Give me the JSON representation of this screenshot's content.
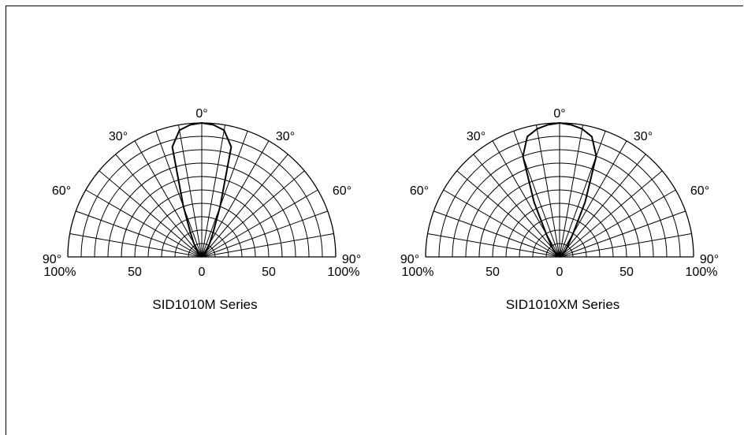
{
  "chart_data": [
    {
      "type": "polar",
      "title": "SID1010M Series",
      "angle_labels": [
        "0°",
        "30°",
        "30°",
        "60°",
        "60°",
        "90°",
        "90°"
      ],
      "radial_labels": [
        "100%",
        "50",
        "0",
        "50",
        "100%"
      ],
      "angle_range_deg": [
        -90,
        90
      ],
      "radius_range_pct": [
        0,
        100
      ],
      "grid": true,
      "series": [
        {
          "angle_deg": [
            -90,
            -80,
            -70,
            -60,
            -50,
            -40,
            -30,
            -25,
            -20,
            -15,
            -10,
            -5,
            0,
            5,
            10,
            15,
            20,
            25,
            30,
            40,
            50,
            60,
            70,
            80,
            90
          ],
          "intensity_pct": [
            0,
            0,
            0,
            1,
            2,
            5,
            12,
            20,
            40,
            85,
            96,
            99,
            100,
            99,
            96,
            85,
            40,
            20,
            12,
            5,
            2,
            1,
            0,
            0,
            0
          ]
        }
      ]
    },
    {
      "type": "polar",
      "title": "SID1010XM Series",
      "angle_labels": [
        "0°",
        "30°",
        "30°",
        "60°",
        "60°",
        "90°",
        "90°"
      ],
      "radial_labels": [
        "100%",
        "50",
        "0",
        "50",
        "100%"
      ],
      "angle_range_deg": [
        -90,
        90
      ],
      "radius_range_pct": [
        0,
        100
      ],
      "grid": true,
      "series": [
        {
          "angle_deg": [
            -90,
            -80,
            -70,
            -60,
            -50,
            -40,
            -30,
            -25,
            -20,
            -15,
            -10,
            -5,
            0,
            5,
            10,
            15,
            20,
            25,
            30,
            40,
            50,
            60,
            70,
            80,
            90
          ],
          "intensity_pct": [
            0,
            0,
            0,
            1,
            3,
            8,
            20,
            45,
            80,
            93,
            97,
            99,
            100,
            99,
            97,
            93,
            80,
            45,
            20,
            8,
            3,
            1,
            0,
            0,
            0
          ]
        }
      ]
    }
  ]
}
